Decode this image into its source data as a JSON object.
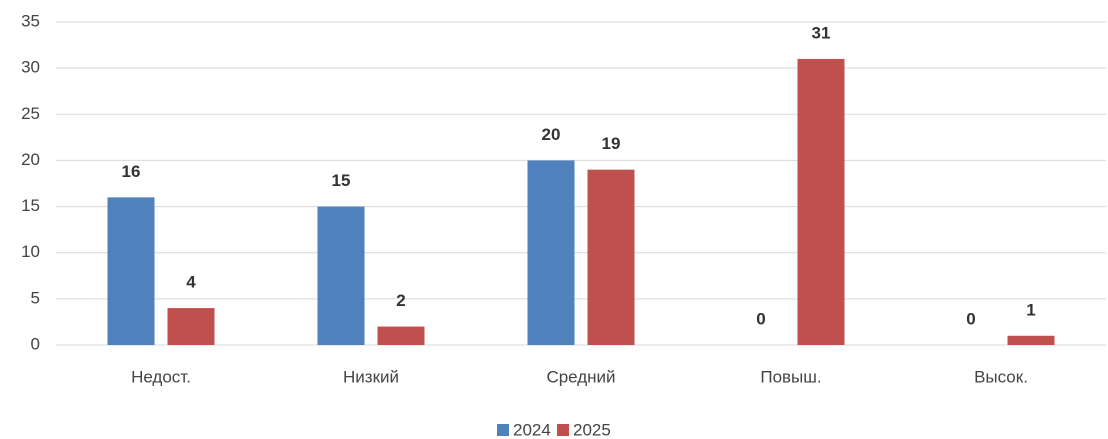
{
  "chart_data": {
    "type": "bar",
    "categories": [
      "Недост.",
      "Низкий",
      "Средний",
      "Повыш.",
      "Высок."
    ],
    "series": [
      {
        "name": "2024",
        "color": "#4f81bd",
        "values": [
          16,
          15,
          20,
          0,
          0
        ]
      },
      {
        "name": "2025",
        "color": "#c0504d",
        "values": [
          4,
          2,
          19,
          31,
          1
        ]
      }
    ],
    "ylim": [
      0,
      35
    ],
    "yticks": [
      0,
      5,
      10,
      15,
      20,
      25,
      30,
      35
    ],
    "grid": true,
    "legend": "bottom"
  }
}
